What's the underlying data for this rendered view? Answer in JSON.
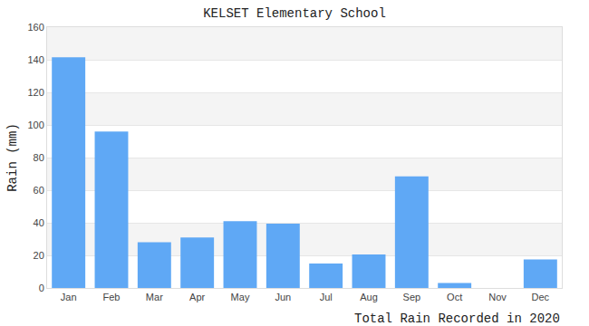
{
  "chart_data": {
    "type": "bar",
    "title": "KELSET Elementary School",
    "x_label": "Total Rain Recorded in 2020",
    "y_label": "Rain (mm)",
    "categories": [
      "Jan",
      "Feb",
      "Mar",
      "Apr",
      "May",
      "Jun",
      "Jul",
      "Aug",
      "Sep",
      "Oct",
      "Nov",
      "Dec"
    ],
    "values": [
      141.5,
      96,
      28,
      31,
      41,
      39.5,
      15,
      20.5,
      68.5,
      3,
      0,
      17.5
    ],
    "color": "#5fa8f5",
    "ylim": [
      0,
      160
    ],
    "yticks": [
      0,
      20,
      40,
      60,
      80,
      100,
      120,
      140,
      160
    ],
    "grid": true
  }
}
